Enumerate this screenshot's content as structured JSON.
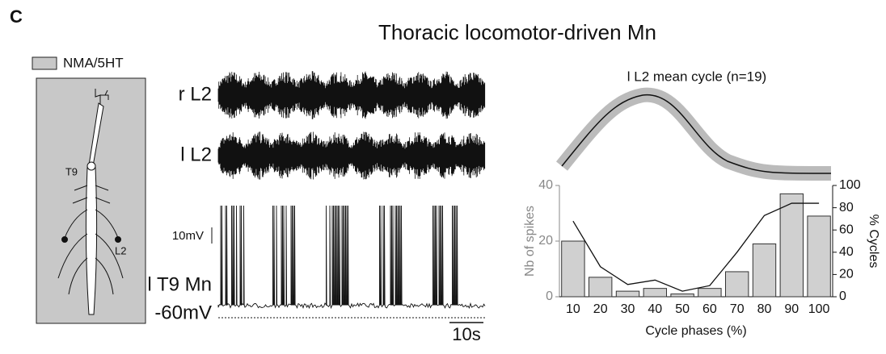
{
  "panel_label": "C",
  "title": "Thoracic locomotor-driven Mn",
  "legend": "NMA/5HT",
  "diagram": {
    "labels": [
      "T9",
      "L2"
    ]
  },
  "traces": {
    "labels": [
      "r L2",
      "l L2",
      "l T9 Mn"
    ],
    "voltage_scale": "10mV",
    "resting": "-60mV",
    "time_scale": "10s"
  },
  "mean_cycle_title": "l L2 mean cycle (n=19)",
  "chart_data": {
    "type": "bar",
    "categories": [
      "10",
      "20",
      "30",
      "40",
      "50",
      "60",
      "70",
      "80",
      "90",
      "100"
    ],
    "series": [
      {
        "color": "#d0d0d0",
        "values": [
          20,
          7,
          2,
          3,
          1,
          3,
          9,
          19,
          37,
          29
        ]
      },
      {
        "color": "#111111",
        "axis": "y2",
        "values": [
          68,
          27,
          11,
          15,
          5,
          10,
          40,
          73,
          84,
          84
        ]
      }
    ],
    "ylim": [
      0,
      40
    ],
    "yticks": [
      0,
      20,
      40
    ],
    "y2lim": [
      0,
      100
    ],
    "y2ticks": [
      0,
      20,
      40,
      60,
      80,
      100
    ],
    "xlabel": "Cycle phases (%)",
    "ylabel": "Nb of spikes",
    "y2label": "% Cycles"
  }
}
